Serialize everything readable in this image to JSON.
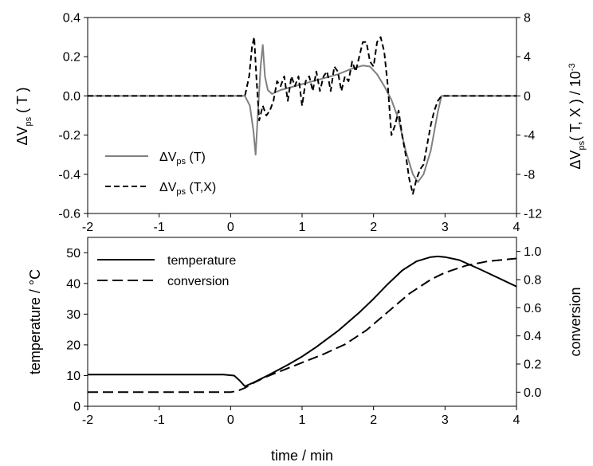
{
  "chart_data": [
    {
      "type": "line",
      "x_ticks": [
        "-2",
        "-1",
        "0",
        "1",
        "2",
        "3",
        "4"
      ],
      "xlim": [
        -2,
        4
      ],
      "ylabel_left": {
        "pre": "ΔV",
        "sub": "ps",
        "post": " ( T )"
      },
      "ylabel_right": {
        "pre": "ΔV",
        "sub": "ps",
        "mid": "( T, X ) / 10",
        "sup": "-3"
      },
      "ylim_left": [
        -0.6,
        0.4
      ],
      "ylim_right": [
        -12,
        8
      ],
      "y_ticks_left": [
        "-0.6",
        "-0.4",
        "-0.2",
        "0.0",
        "0.2",
        "0.4"
      ],
      "y_ticks_right": [
        "-12",
        "-8",
        "-4",
        "0",
        "4",
        "8"
      ],
      "legend_position": "lower-left",
      "series": [
        {
          "name": {
            "pre": "ΔV",
            "sub": "ps",
            "post": " (T)"
          },
          "color": "#808080",
          "style": "solid",
          "axis": "left",
          "x": [
            -2,
            0.2,
            0.27,
            0.32,
            0.35,
            0.38,
            0.42,
            0.45,
            0.48,
            0.52,
            0.58,
            0.7,
            0.9,
            1.1,
            1.3,
            1.5,
            1.7,
            1.85,
            1.95,
            2.05,
            2.15,
            2.25,
            2.35,
            2.45,
            2.55,
            2.62,
            2.7,
            2.8,
            2.9,
            2.95,
            4
          ],
          "y": [
            0,
            0,
            -0.05,
            -0.18,
            -0.3,
            -0.1,
            0.15,
            0.26,
            0.1,
            0.03,
            0.01,
            0.03,
            0.05,
            0.07,
            0.09,
            0.11,
            0.14,
            0.155,
            0.15,
            0.11,
            0.05,
            -0.02,
            -0.12,
            -0.28,
            -0.4,
            -0.44,
            -0.4,
            -0.28,
            -0.08,
            0,
            0
          ]
        },
        {
          "name": {
            "pre": "ΔV",
            "sub": "ps",
            "post": " (T,X)"
          },
          "color": "#000000",
          "style": "dashed",
          "axis": "right",
          "x": [
            -2,
            0.2,
            0.26,
            0.3,
            0.33,
            0.36,
            0.4,
            0.45,
            0.5,
            0.55,
            0.6,
            0.65,
            0.7,
            0.75,
            0.8,
            0.85,
            0.9,
            0.95,
            1.0,
            1.05,
            1.1,
            1.15,
            1.2,
            1.25,
            1.3,
            1.35,
            1.4,
            1.45,
            1.5,
            1.55,
            1.6,
            1.65,
            1.7,
            1.75,
            1.8,
            1.85,
            1.9,
            1.95,
            2.0,
            2.05,
            2.1,
            2.15,
            2.2,
            2.25,
            2.3,
            2.35,
            2.4,
            2.45,
            2.5,
            2.55,
            2.6,
            2.65,
            2.7,
            2.75,
            2.8,
            2.85,
            2.9,
            2.95,
            4
          ],
          "y": [
            0,
            0,
            2,
            5,
            6,
            2,
            -2.5,
            -1,
            -2,
            -1.5,
            -0.5,
            1.5,
            1,
            2,
            -0.5,
            2,
            1,
            2,
            -1,
            1.5,
            2,
            0.5,
            2.5,
            0.5,
            2,
            2.5,
            0.5,
            3,
            2.5,
            0.5,
            2,
            1.5,
            3.5,
            2.5,
            4,
            5.5,
            5.5,
            3.5,
            3,
            5.5,
            6,
            4.5,
            1,
            -4,
            -3,
            -1.5,
            -4,
            -6,
            -8.5,
            -10,
            -8.5,
            -7.5,
            -7,
            -5,
            -3,
            -1.5,
            -0.5,
            0,
            0
          ]
        }
      ]
    },
    {
      "type": "line",
      "x_ticks": [
        "-2",
        "-1",
        "0",
        "1",
        "2",
        "3",
        "4"
      ],
      "xlim": [
        -2,
        4
      ],
      "xlabel": "time / min",
      "ylabel_left": "temperature / °C",
      "ylabel_right": "conversion",
      "ylim_left": [
        0,
        55
      ],
      "ylim_right": [
        -0.1,
        1.1
      ],
      "y_ticks_left": [
        "0",
        "10",
        "20",
        "30",
        "40",
        "50"
      ],
      "y_ticks_right": [
        "0.0",
        "0.2",
        "0.4",
        "0.6",
        "0.8",
        "1.0"
      ],
      "legend_position": "top-left",
      "series": [
        {
          "name": "temperature",
          "color": "#000000",
          "style": "solid",
          "axis": "left",
          "x": [
            -2,
            -0.1,
            0.05,
            0.12,
            0.2,
            0.3,
            0.5,
            0.8,
            1.0,
            1.2,
            1.5,
            1.8,
            2.0,
            2.2,
            2.4,
            2.6,
            2.8,
            2.9,
            3.0,
            3.2,
            3.5,
            4.0
          ],
          "y": [
            10.3,
            10.3,
            10.0,
            8.5,
            6.5,
            7.5,
            9.8,
            13.5,
            16.2,
            19.3,
            24.5,
            30.5,
            35.0,
            39.8,
            44.2,
            47.2,
            48.6,
            48.8,
            48.6,
            47.6,
            44.5,
            39.0
          ]
        },
        {
          "name": "conversion",
          "color": "#000000",
          "style": "dashed",
          "axis": "right",
          "x": [
            -2,
            0.0,
            0.1,
            0.2,
            0.3,
            0.5,
            0.8,
            1.0,
            1.3,
            1.6,
            1.9,
            2.2,
            2.5,
            2.8,
            3.0,
            3.3,
            3.6,
            4.0
          ],
          "y": [
            0.0,
            0.0,
            0.01,
            0.03,
            0.06,
            0.11,
            0.17,
            0.21,
            0.27,
            0.34,
            0.44,
            0.57,
            0.7,
            0.8,
            0.85,
            0.9,
            0.93,
            0.95
          ]
        }
      ]
    }
  ]
}
